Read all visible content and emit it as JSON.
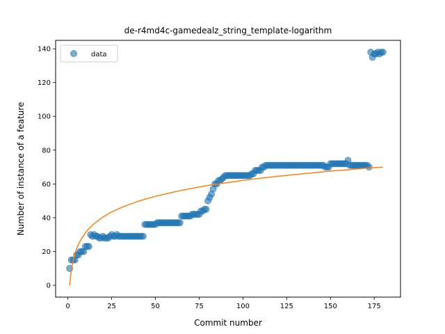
{
  "chart_data": {
    "type": "scatter",
    "title": "de-r4md4c-gamedealz_string_template-logarithm",
    "xlabel": "Commit number",
    "ylabel": "Number of instance of a feature",
    "xlim": [
      -7,
      190
    ],
    "ylim": [
      -7,
      145
    ],
    "xticks": [
      0,
      25,
      50,
      75,
      100,
      125,
      150,
      175
    ],
    "yticks": [
      0,
      20,
      40,
      60,
      80,
      100,
      120,
      140
    ],
    "legend": {
      "position": "top-left",
      "entries": [
        "data"
      ]
    },
    "grid": false,
    "colors": {
      "data": "#1f77b4",
      "fit": "#ff7f0e"
    },
    "series": [
      {
        "name": "data",
        "kind": "scatter",
        "points": [
          [
            1,
            10
          ],
          [
            2,
            15
          ],
          [
            3,
            15
          ],
          [
            4,
            15
          ],
          [
            5,
            18
          ],
          [
            6,
            18
          ],
          [
            7,
            20
          ],
          [
            8,
            20
          ],
          [
            9,
            20
          ],
          [
            10,
            23
          ],
          [
            11,
            23
          ],
          [
            12,
            23
          ],
          [
            13,
            30
          ],
          [
            14,
            29
          ],
          [
            15,
            30
          ],
          [
            16,
            29
          ],
          [
            17,
            29
          ],
          [
            18,
            28
          ],
          [
            19,
            28
          ],
          [
            20,
            29
          ],
          [
            21,
            28
          ],
          [
            22,
            28
          ],
          [
            23,
            28
          ],
          [
            24,
            29
          ],
          [
            25,
            30
          ],
          [
            26,
            29
          ],
          [
            27,
            29
          ],
          [
            28,
            30
          ],
          [
            29,
            29
          ],
          [
            30,
            29
          ],
          [
            31,
            29
          ],
          [
            32,
            29
          ],
          [
            33,
            29
          ],
          [
            34,
            29
          ],
          [
            35,
            29
          ],
          [
            36,
            29
          ],
          [
            37,
            29
          ],
          [
            38,
            29
          ],
          [
            39,
            29
          ],
          [
            40,
            29
          ],
          [
            41,
            29
          ],
          [
            42,
            29
          ],
          [
            43,
            29
          ],
          [
            44,
            36
          ],
          [
            45,
            36
          ],
          [
            46,
            36
          ],
          [
            47,
            36
          ],
          [
            48,
            36
          ],
          [
            49,
            36
          ],
          [
            50,
            36
          ],
          [
            51,
            37
          ],
          [
            52,
            37
          ],
          [
            53,
            37
          ],
          [
            54,
            37
          ],
          [
            55,
            37
          ],
          [
            56,
            37
          ],
          [
            57,
            37
          ],
          [
            58,
            37
          ],
          [
            59,
            37
          ],
          [
            60,
            37
          ],
          [
            61,
            37
          ],
          [
            62,
            37
          ],
          [
            63,
            37
          ],
          [
            64,
            37
          ],
          [
            65,
            41
          ],
          [
            66,
            41
          ],
          [
            67,
            41
          ],
          [
            68,
            41
          ],
          [
            69,
            41
          ],
          [
            70,
            41
          ],
          [
            71,
            42
          ],
          [
            72,
            42
          ],
          [
            73,
            42
          ],
          [
            74,
            42
          ],
          [
            75,
            42
          ],
          [
            76,
            44
          ],
          [
            77,
            44
          ],
          [
            78,
            45
          ],
          [
            79,
            45
          ],
          [
            80,
            50
          ],
          [
            81,
            52
          ],
          [
            82,
            54
          ],
          [
            83,
            57
          ],
          [
            84,
            60
          ],
          [
            85,
            60
          ],
          [
            86,
            62
          ],
          [
            87,
            62
          ],
          [
            88,
            63
          ],
          [
            89,
            64
          ],
          [
            90,
            65
          ],
          [
            91,
            65
          ],
          [
            92,
            65
          ],
          [
            93,
            65
          ],
          [
            94,
            65
          ],
          [
            95,
            65
          ],
          [
            96,
            65
          ],
          [
            97,
            65
          ],
          [
            98,
            65
          ],
          [
            99,
            65
          ],
          [
            100,
            65
          ],
          [
            101,
            65
          ],
          [
            102,
            65
          ],
          [
            103,
            65
          ],
          [
            104,
            65
          ],
          [
            105,
            66
          ],
          [
            106,
            66
          ],
          [
            107,
            68
          ],
          [
            108,
            68
          ],
          [
            109,
            68
          ],
          [
            110,
            68
          ],
          [
            111,
            70
          ],
          [
            112,
            70
          ],
          [
            113,
            71
          ],
          [
            114,
            71
          ],
          [
            115,
            71
          ],
          [
            116,
            71
          ],
          [
            117,
            71
          ],
          [
            118,
            71
          ],
          [
            119,
            71
          ],
          [
            120,
            71
          ],
          [
            121,
            71
          ],
          [
            122,
            71
          ],
          [
            123,
            71
          ],
          [
            124,
            71
          ],
          [
            125,
            71
          ],
          [
            126,
            71
          ],
          [
            127,
            71
          ],
          [
            128,
            71
          ],
          [
            129,
            71
          ],
          [
            130,
            71
          ],
          [
            131,
            71
          ],
          [
            132,
            71
          ],
          [
            133,
            71
          ],
          [
            134,
            71
          ],
          [
            135,
            71
          ],
          [
            136,
            71
          ],
          [
            137,
            71
          ],
          [
            138,
            71
          ],
          [
            139,
            71
          ],
          [
            140,
            71
          ],
          [
            141,
            71
          ],
          [
            142,
            71
          ],
          [
            143,
            71
          ],
          [
            144,
            71
          ],
          [
            145,
            71
          ],
          [
            146,
            71
          ],
          [
            147,
            70
          ],
          [
            148,
            70
          ],
          [
            149,
            70
          ],
          [
            150,
            72
          ],
          [
            151,
            72
          ],
          [
            152,
            72
          ],
          [
            153,
            72
          ],
          [
            154,
            72
          ],
          [
            155,
            72
          ],
          [
            156,
            72
          ],
          [
            157,
            72
          ],
          [
            158,
            72
          ],
          [
            159,
            72
          ],
          [
            160,
            74
          ],
          [
            161,
            71
          ],
          [
            162,
            71
          ],
          [
            163,
            71
          ],
          [
            164,
            71
          ],
          [
            165,
            71
          ],
          [
            166,
            71
          ],
          [
            167,
            71
          ],
          [
            168,
            71
          ],
          [
            169,
            71
          ],
          [
            170,
            71
          ],
          [
            171,
            71
          ],
          [
            172,
            70
          ],
          [
            173,
            138
          ],
          [
            174,
            135
          ],
          [
            175,
            137
          ],
          [
            176,
            137
          ],
          [
            177,
            138
          ],
          [
            178,
            137
          ],
          [
            179,
            138
          ],
          [
            180,
            138
          ]
        ]
      },
      {
        "kind": "line",
        "points": [
          [
            1,
            0
          ],
          [
            2,
            9.35
          ],
          [
            3,
            14.8
          ],
          [
            4,
            18.7
          ],
          [
            5,
            21.7
          ],
          [
            6,
            24.2
          ],
          [
            8,
            28.0
          ],
          [
            10,
            31.0
          ],
          [
            12,
            33.5
          ],
          [
            15,
            36.5
          ],
          [
            20,
            40.4
          ],
          [
            25,
            43.4
          ],
          [
            30,
            45.8
          ],
          [
            40,
            49.7
          ],
          [
            50,
            52.7
          ],
          [
            60,
            55.1
          ],
          [
            70,
            57.2
          ],
          [
            80,
            59.1
          ],
          [
            90,
            60.6
          ],
          [
            100,
            62.1
          ],
          [
            110,
            63.4
          ],
          [
            120,
            64.5
          ],
          [
            130,
            65.6
          ],
          [
            140,
            66.6
          ],
          [
            150,
            67.6
          ],
          [
            160,
            68.4
          ],
          [
            170,
            69.3
          ],
          [
            180,
            70.0
          ]
        ]
      }
    ]
  }
}
